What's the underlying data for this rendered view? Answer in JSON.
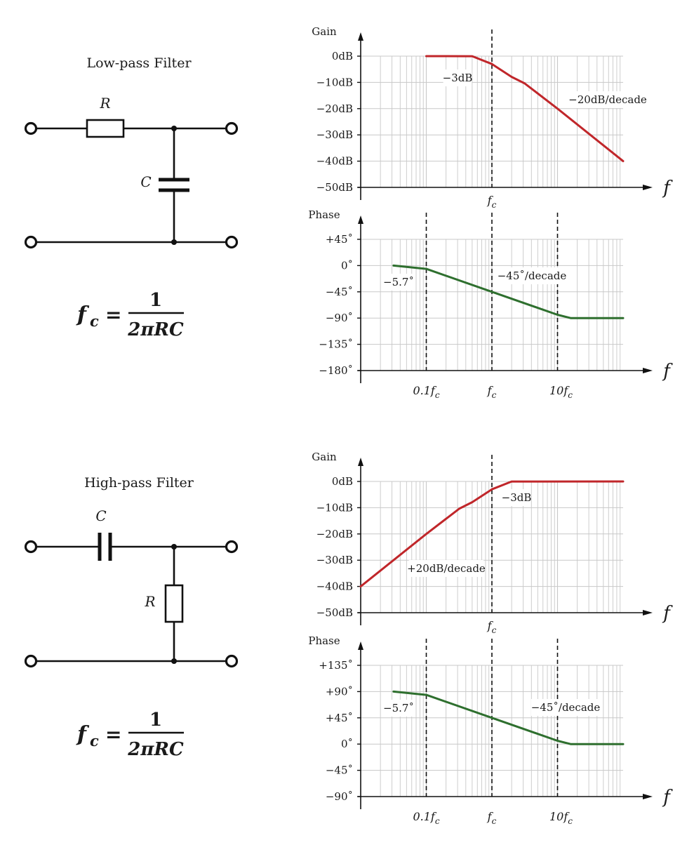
{
  "colors": {
    "gain": "#c0262a",
    "phase": "#2e6f2e",
    "grid": "#c8c8c8",
    "ink": "#111111"
  },
  "low_pass": {
    "title": "Low-pass Filter",
    "r_label": "R",
    "c_label": "C",
    "formula": {
      "lhs": "f",
      "sub": "c",
      "num": "1",
      "den": "2πRC"
    }
  },
  "high_pass": {
    "title": "High-pass Filter",
    "r_label": "R",
    "c_label": "C",
    "formula": {
      "lhs": "f",
      "sub": "c",
      "num": "1",
      "den": "2πRC"
    }
  },
  "chart_data": [
    {
      "type": "line",
      "filter": "low-pass",
      "ylabel": "Gain",
      "xlabel": "f",
      "y_ticks": [
        "0dB",
        "−10dB",
        "−20dB",
        "−30dB",
        "−40dB",
        "−50dB"
      ],
      "ylim": [
        -50,
        0
      ],
      "xlim_log10_fc": [
        -1,
        2
      ],
      "x_tick_label": "f_c",
      "series": [
        {
          "name": "gain",
          "points": [
            [
              -1,
              0
            ],
            [
              -0.3,
              -0.04
            ],
            [
              0,
              -3
            ],
            [
              0.3,
              -7.9
            ],
            [
              0.5,
              -10.4
            ],
            [
              1,
              -20
            ],
            [
              2,
              -40
            ]
          ]
        }
      ],
      "annotations": [
        "−3dB",
        "−20dB/decade"
      ]
    },
    {
      "type": "line",
      "filter": "low-pass",
      "ylabel": "Phase",
      "xlabel": "f",
      "y_ticks": [
        "+45˚",
        "0˚",
        "−45˚",
        "−90˚",
        "−135˚",
        "−180˚"
      ],
      "ylim": [
        -180,
        45
      ],
      "x_tick_labels": [
        "0.1f_c",
        "f_c",
        "10f_c"
      ],
      "series": [
        {
          "name": "phase",
          "points": [
            [
              -1.5,
              0
            ],
            [
              -1,
              -5.7
            ],
            [
              0,
              -45
            ],
            [
              1,
              -84.3
            ],
            [
              1.2,
              -90
            ],
            [
              2,
              -90
            ]
          ]
        }
      ],
      "annotations": [
        "−5.7˚",
        "−45˚/decade"
      ]
    },
    {
      "type": "line",
      "filter": "high-pass",
      "ylabel": "Gain",
      "xlabel": "f",
      "y_ticks": [
        "0dB",
        "−10dB",
        "−20dB",
        "−30dB",
        "−40dB",
        "−50dB"
      ],
      "ylim": [
        -50,
        0
      ],
      "x_tick_label": "f_c",
      "series": [
        {
          "name": "gain",
          "points": [
            [
              -2,
              -40
            ],
            [
              -1,
              -20
            ],
            [
              -0.5,
              -10.4
            ],
            [
              -0.3,
              -7.9
            ],
            [
              0,
              -3
            ],
            [
              0.3,
              -0.04
            ],
            [
              2,
              0
            ]
          ]
        }
      ],
      "annotations": [
        "−3dB",
        "+20dB/decade"
      ]
    },
    {
      "type": "line",
      "filter": "high-pass",
      "ylabel": "Phase",
      "xlabel": "f",
      "y_ticks": [
        "+135˚",
        "+90˚",
        "+45˚",
        "0˚",
        "−45˚",
        "−90˚"
      ],
      "ylim": [
        -90,
        135
      ],
      "x_tick_labels": [
        "0.1f_c",
        "f_c",
        "10f_c"
      ],
      "series": [
        {
          "name": "phase",
          "points": [
            [
              -1.5,
              90
            ],
            [
              -1,
              84.3
            ],
            [
              0,
              45
            ],
            [
              1,
              5.7
            ],
            [
              1.2,
              0
            ],
            [
              2,
              0
            ]
          ]
        }
      ],
      "annotations": [
        "−5.7˚",
        "−45˚/decade"
      ]
    }
  ]
}
